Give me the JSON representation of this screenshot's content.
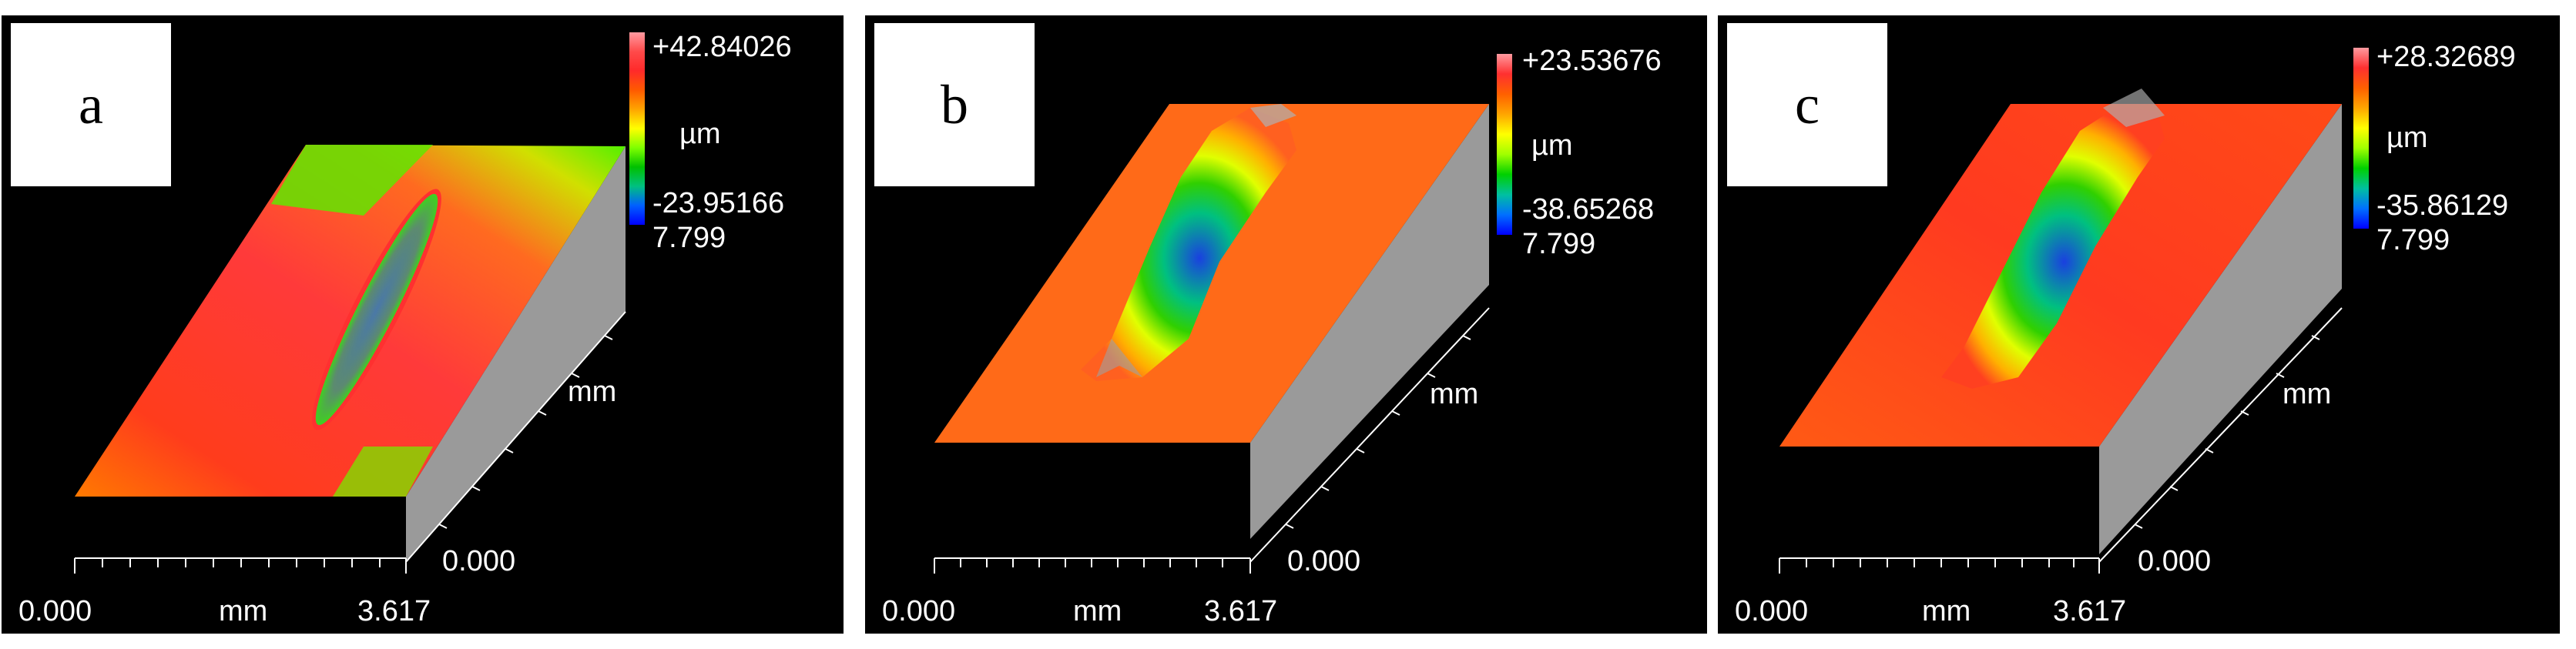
{
  "panels": [
    {
      "id": "a",
      "label": "a",
      "scale_max": "+42.84026",
      "scale_min": "-23.95166",
      "scale_unit": "µm",
      "z_extent": "7.799",
      "y_axis_unit": "mm",
      "y_axis_origin": "0.000",
      "x_axis_start": "0.000",
      "x_axis_unit": "mm",
      "x_axis_end": "3.617",
      "colorbar_gradient": [
        "#ff9aa0",
        "#ff4a4a",
        "#ff2a2a",
        "#ff5a00",
        "#ffa500",
        "#ffff00",
        "#7fff00",
        "#00c000",
        "#00c080",
        "#0060ff",
        "#0000ff"
      ]
    },
    {
      "id": "b",
      "label": "b",
      "scale_max": "+23.53676",
      "scale_min": "-38.65268",
      "scale_unit": "µm",
      "z_extent": "7.799",
      "y_axis_unit": "mm",
      "y_axis_origin": "0.000",
      "x_axis_start": "0.000",
      "x_axis_unit": "mm",
      "x_axis_end": "3.617",
      "colorbar_gradient": [
        "#ff9aa0",
        "#ff3030",
        "#ff6000",
        "#ffa500",
        "#ffff00",
        "#a0ff00",
        "#00d000",
        "#00c0a0",
        "#0070ff",
        "#0000ff"
      ]
    },
    {
      "id": "c",
      "label": "c",
      "scale_max": "+28.32689",
      "scale_min": "-35.86129",
      "scale_unit": "µm",
      "z_extent": "7.799",
      "y_axis_unit": "mm",
      "y_axis_origin": "0.000",
      "x_axis_start": "0.000",
      "x_axis_unit": "mm",
      "x_axis_end": "3.617",
      "colorbar_gradient": [
        "#ff9aa0",
        "#ff3030",
        "#ff6000",
        "#ffa500",
        "#ffff00",
        "#a0ff00",
        "#00d000",
        "#00c0a0",
        "#0070ff",
        "#0000ff"
      ]
    }
  ]
}
